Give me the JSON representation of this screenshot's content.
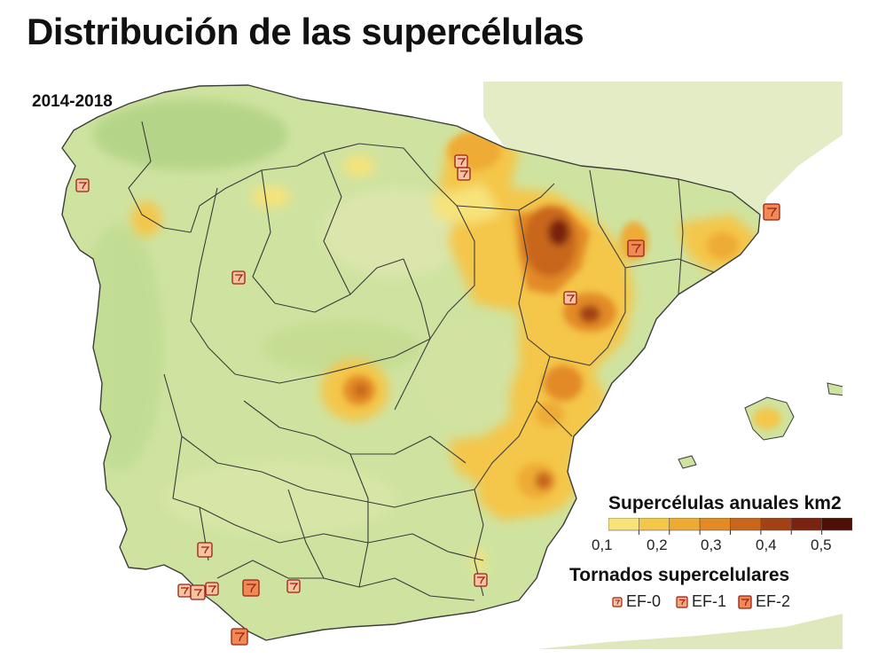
{
  "title": "Distribución de las supercélulas",
  "period": "2014-2018",
  "legend": {
    "title": "Supercélulas anuales km2",
    "scale_colors": [
      "#f7e37a",
      "#f4c64a",
      "#eeab34",
      "#e28a25",
      "#c8661b",
      "#a24114",
      "#7a240f",
      "#4e0f08"
    ],
    "ticks": [
      "0,1",
      "0,2",
      "0,3",
      "0,4",
      "0,5"
    ]
  },
  "tornado_legend": {
    "title": "Tornados supercelulares",
    "items": [
      {
        "label": "EF-0",
        "icon": "tornado-icon-small"
      },
      {
        "label": "EF-1",
        "icon": "tornado-icon-medium"
      },
      {
        "label": "EF-2",
        "icon": "tornado-icon-large"
      }
    ]
  },
  "colors": {
    "land": "#cfe3a0",
    "sea": "#ffffff",
    "france": "#e3ecc4",
    "border": "#3c3c3c",
    "tornado_fill": "#ef8a55",
    "tornado_stroke": "#9b1f14"
  }
}
